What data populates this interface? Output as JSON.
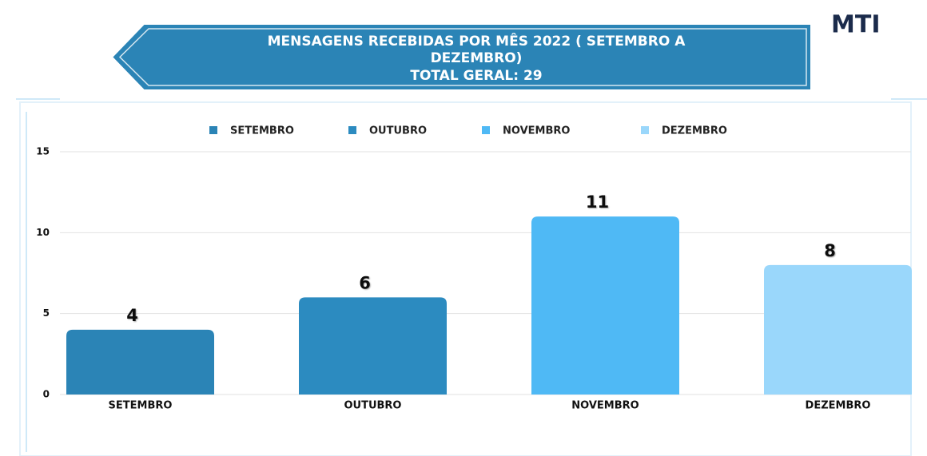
{
  "logo": "MTI",
  "chart_data": {
    "type": "bar",
    "title": "MENSAGENS RECEBIDAS POR MÊS 2022 ( SETEMBRO A DEZEMBRO)",
    "subtitle": "TOTAL GERAL: 29",
    "categories": [
      "SETEMBRO",
      "OUTUBRO",
      "NOVEMBRO",
      "DEZEMBRO"
    ],
    "values": [
      4,
      6,
      11,
      8
    ],
    "colors": [
      "#2b84b6",
      "#2c8bc0",
      "#4fb9f5",
      "#9ad7fb"
    ],
    "ylim": [
      0,
      15
    ],
    "yticks": [
      0,
      5,
      10,
      15
    ],
    "grid": true,
    "legend": "top"
  }
}
